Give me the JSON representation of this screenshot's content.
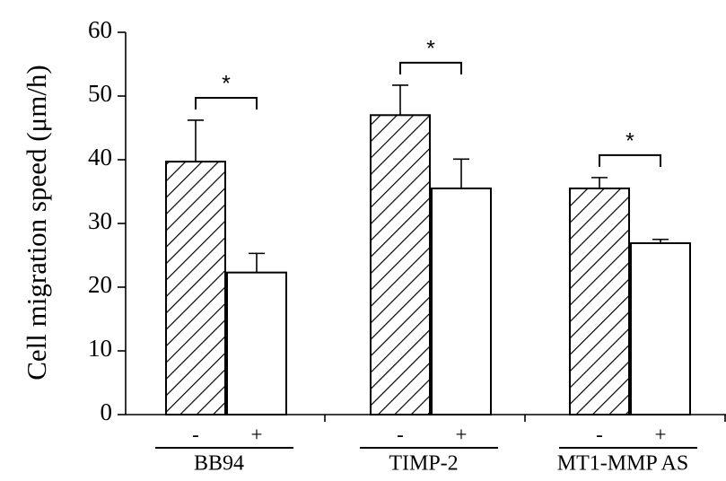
{
  "chart_data": {
    "type": "bar",
    "ylabel": "Cell migration speed (μm/h)",
    "ylim": [
      0,
      60
    ],
    "yticks": [
      "0",
      "10",
      "20",
      "30",
      "40",
      "50",
      "60"
    ],
    "groups": [
      {
        "label": "BB94",
        "bars": [
          {
            "label": "-",
            "value": 39.7,
            "error": 6.5,
            "pattern": "hatched"
          },
          {
            "label": "+",
            "value": 22.3,
            "error": 3.0,
            "pattern": "open"
          }
        ],
        "significance": "*"
      },
      {
        "label": "TIMP-2",
        "bars": [
          {
            "label": "-",
            "value": 47.0,
            "error": 4.7,
            "pattern": "hatched"
          },
          {
            "label": "+",
            "value": 35.5,
            "error": 4.6,
            "pattern": "open"
          }
        ],
        "significance": "*"
      },
      {
        "label": "MT1-MMP AS",
        "bars": [
          {
            "label": "-",
            "value": 35.5,
            "error": 1.7,
            "pattern": "hatched"
          },
          {
            "label": "+",
            "value": 26.9,
            "error": 0.6,
            "pattern": "open"
          }
        ],
        "significance": "*"
      }
    ],
    "grid": false,
    "legend": "none"
  }
}
